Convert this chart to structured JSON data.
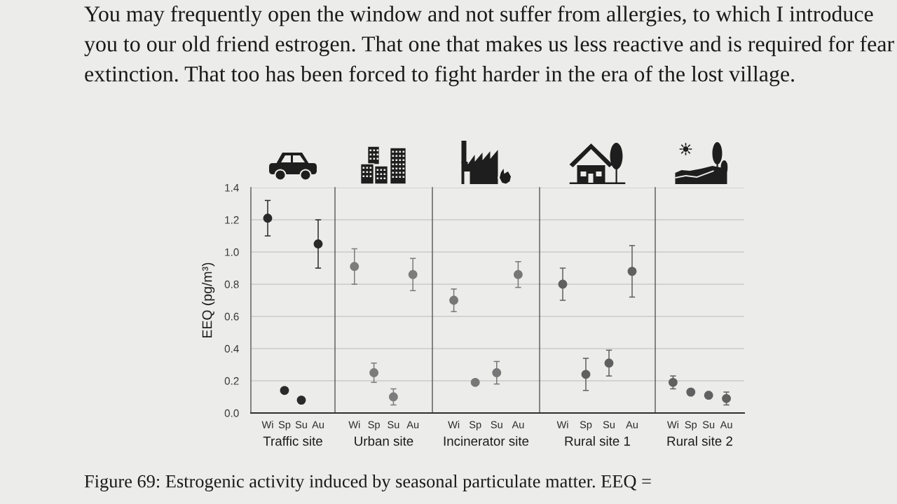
{
  "chart_data": [
    {
      "type": "scatter",
      "categories": [
        "Wi",
        "Sp",
        "Su",
        "Au"
      ],
      "series": [
        {
          "color": "#2a2a2a",
          "values": [
            1.21,
            0.14,
            0.08,
            1.05
          ],
          "errors": [
            0.11,
            null,
            null,
            0.15
          ]
        }
      ],
      "xlabel": "Traffic site",
      "ylabel": "EEQ (pg/m³)",
      "ylim": [
        0,
        1.4
      ],
      "yticks": [
        {
          "value": 0,
          "label": "0.0"
        },
        0.2,
        0.4,
        0.6,
        0.8,
        {
          "value": 1,
          "label": "1.0"
        },
        1.2,
        1.4
      ],
      "grid": "y",
      "marker": "circle",
      "annotations": [
        "You may frequently open the window and not suffer from allergies, to which I introduce you to our old friend estrogen. That one that makes us less reactive and is required for fear extinction. That too has been forced to fight harder in the era of the lost village.",
        "Figure 69: Estrogenic activity induced by seasonal particulate matter. EEQ ="
      ]
    },
    {
      "type": "scatter",
      "categories": [
        "Wi",
        "Sp",
        "Su",
        "Au"
      ],
      "series": [
        {
          "color": "#7c7c7c",
          "values": [
            0.91,
            0.25,
            0.1,
            0.86
          ],
          "errors": [
            0.11,
            0.06,
            0.05,
            0.1
          ]
        }
      ],
      "xlabel": "Urban site",
      "ylim": [
        0,
        1.4
      ],
      "yticks": [
        0,
        0.2,
        0.4,
        0.6,
        0.8,
        1,
        1.2,
        1.4
      ],
      "tick_labels": "x",
      "grid": "y",
      "marker": "circle"
    },
    {
      "type": "scatter",
      "categories": [
        "Wi",
        "Sp",
        "Su",
        "Au"
      ],
      "series": [
        {
          "color": "#777777",
          "values": [
            0.7,
            0.19,
            0.25,
            0.86
          ],
          "errors": [
            0.07,
            null,
            0.07,
            0.08
          ]
        }
      ],
      "xlabel": "Incinerator site",
      "ylim": [
        0,
        1.4
      ],
      "yticks": [
        0,
        0.2,
        0.4,
        0.6,
        0.8,
        1,
        1.2,
        1.4
      ],
      "tick_labels": "x",
      "grid": "y",
      "marker": "circle"
    },
    {
      "type": "scatter",
      "categories": [
        "Wi",
        "Sp",
        "Su",
        "Au"
      ],
      "series": [
        {
          "color": "#606060",
          "values": [
            0.8,
            0.24,
            0.31,
            0.88
          ],
          "errors": [
            0.1,
            0.1,
            0.08,
            0.16
          ]
        }
      ],
      "xlabel": "Rural site 1",
      "ylim": [
        0,
        1.4
      ],
      "yticks": [
        0,
        0.2,
        0.4,
        0.6,
        0.8,
        1,
        1.2,
        1.4
      ],
      "tick_labels": "x",
      "grid": "y",
      "marker": "circle"
    },
    {
      "type": "scatter",
      "categories": [
        "Wi",
        "Sp",
        "Su",
        "Au"
      ],
      "series": [
        {
          "color": "#606060",
          "values": [
            0.19,
            0.13,
            0.11,
            0.09
          ],
          "errors": [
            0.04,
            null,
            null,
            0.04
          ]
        }
      ],
      "xlabel": "Rural site 2",
      "ylim": [
        0,
        1.4
      ],
      "yticks": [
        0,
        0.2,
        0.4,
        0.6,
        0.8,
        1,
        1.2,
        1.4
      ],
      "tick_labels": "x",
      "grid": "y",
      "marker": "circle"
    }
  ]
}
